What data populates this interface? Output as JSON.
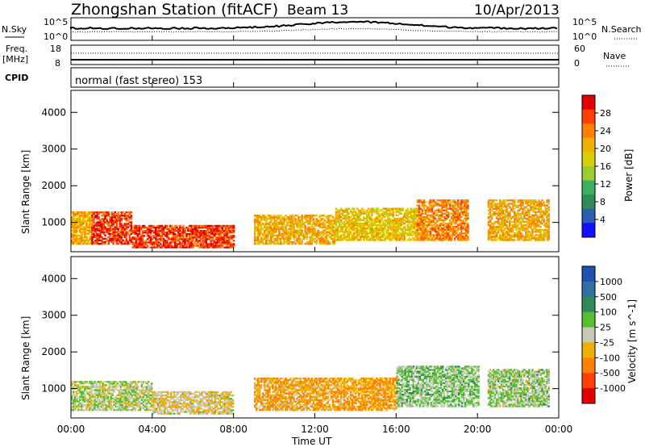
{
  "header": {
    "station": "Zhongshan Station (fitACF)",
    "beam": "Beam 13",
    "date": "10/Apr/2013"
  },
  "noise_panel": {
    "left_label": "N.Sky",
    "left_ticks": [
      "10^5",
      "10^0"
    ],
    "right_ticks": [
      "10^5",
      "10^0"
    ],
    "right_label": "N.Search"
  },
  "freq_panel": {
    "left_label_1": "Freq.",
    "left_label_2": "[MHz]",
    "left_ticks": [
      "18",
      "8"
    ],
    "right_ticks": [
      "60",
      "0"
    ],
    "right_label": "Nave"
  },
  "cpid": {
    "label": "CPID",
    "text": "normal (fast stereo) 153"
  },
  "power_panel": {
    "ylabel": "Slant Range [km]",
    "yticks": [
      "4000",
      "3000",
      "2000",
      "1000"
    ],
    "colorbar_label": "Power [dB]",
    "colorbar_ticks": [
      "28",
      "24",
      "20",
      "16",
      "12",
      "8",
      "4"
    ],
    "colors": [
      "#e00000",
      "#ff4000",
      "#ff8000",
      "#f0b000",
      "#d8d000",
      "#9acd32",
      "#3cb060",
      "#2e8b57",
      "#2a5fb0",
      "#1010ff"
    ]
  },
  "velocity_panel": {
    "ylabel": "Slant Range [km]",
    "yticks": [
      "4000",
      "3000",
      "2000",
      "1000"
    ],
    "colorbar_label": "Velocity [m s^-1]",
    "colorbar_ticks": [
      "1000",
      "500",
      "100",
      "25",
      "-25",
      "-100",
      "-500",
      "-1000"
    ],
    "colors": [
      "#2050b0",
      "#3070a0",
      "#2e8b57",
      "#55c030",
      "#c8c8b4",
      "#f0b000",
      "#ff8000",
      "#ff4000",
      "#e00000"
    ]
  },
  "xaxis": {
    "label": "Time UT",
    "ticks": [
      "00:00",
      "04:00",
      "08:00",
      "12:00",
      "16:00",
      "20:00",
      "00:00"
    ]
  },
  "chart_data": [
    {
      "type": "heatmap",
      "title": "Zhongshan Station (fitACF) Beam 13 10/Apr/2013",
      "xlabel": "Time UT",
      "ylabel": "Slant Range [km]",
      "xlim": [
        "00:00",
        "24:00"
      ],
      "ylim": [
        200,
        4600
      ],
      "colorbar": "Power [dB]",
      "clim": [
        0,
        30
      ],
      "scatter_bands": [
        {
          "t_start": 0.0,
          "t_end": 1.0,
          "range_low": 400,
          "range_high": 1300,
          "power": 20
        },
        {
          "t_start": 1.0,
          "t_end": 3.0,
          "range_low": 400,
          "range_high": 1300,
          "power": 26
        },
        {
          "t_start": 3.0,
          "t_end": 8.0,
          "range_low": 300,
          "range_high": 900,
          "power": 26
        },
        {
          "t_start": 9.0,
          "t_end": 13.0,
          "range_low": 400,
          "range_high": 1200,
          "power": 20
        },
        {
          "t_start": 13.0,
          "t_end": 17.0,
          "range_low": 500,
          "range_high": 1400,
          "power": 18
        },
        {
          "t_start": 17.0,
          "t_end": 19.5,
          "range_low": 500,
          "range_high": 1600,
          "power": 22
        },
        {
          "t_start": 20.5,
          "t_end": 23.5,
          "range_low": 500,
          "range_high": 1600,
          "power": 20
        }
      ]
    },
    {
      "type": "heatmap",
      "title": "",
      "xlabel": "Time UT",
      "ylabel": "Slant Range [km]",
      "xlim": [
        "00:00",
        "24:00"
      ],
      "ylim": [
        200,
        4600
      ],
      "colorbar": "Velocity [m s^-1]",
      "clim": [
        -1000,
        1000
      ],
      "scatter_bands": [
        {
          "t_start": 0.0,
          "t_end": 4.0,
          "range_low": 400,
          "range_high": 1200,
          "velocity": 50
        },
        {
          "t_start": 4.0,
          "t_end": 8.0,
          "range_low": 300,
          "range_high": 900,
          "velocity": -100
        },
        {
          "t_start": 9.0,
          "t_end": 16.0,
          "range_low": 400,
          "range_high": 1300,
          "velocity": -300
        },
        {
          "t_start": 16.0,
          "t_end": 20.0,
          "range_low": 500,
          "range_high": 1600,
          "velocity": 150
        },
        {
          "t_start": 20.5,
          "t_end": 23.5,
          "range_low": 500,
          "range_high": 1500,
          "velocity": 100
        }
      ]
    }
  ]
}
